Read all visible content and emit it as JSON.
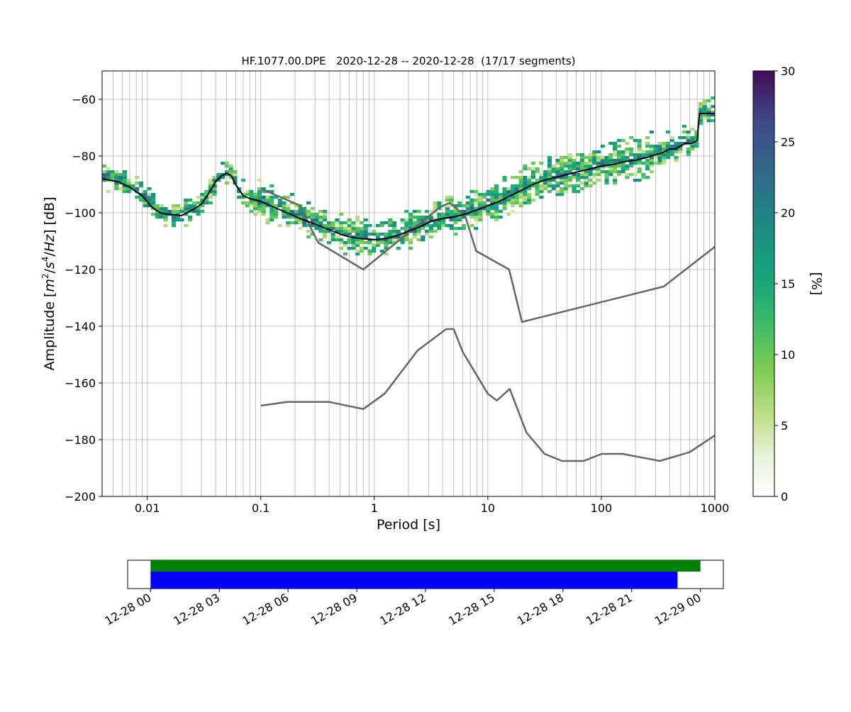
{
  "chart_data": [
    {
      "type": "heatmap",
      "title": "HF.1077.00.DPE   2020-12-28 -- 2020-12-28  (17/17 segments)",
      "xlabel": "Period [s]",
      "ylabel": "Amplitude [m²/s⁴/Hz] [dB]",
      "xscale": "log",
      "xlim": [
        0.004,
        1000
      ],
      "ylim": [
        -200,
        -50
      ],
      "grid": true,
      "x_ticks": [
        {
          "value": 0.01,
          "label": "0.01"
        },
        {
          "value": 0.1,
          "label": "0.1"
        },
        {
          "value": 1,
          "label": "1"
        },
        {
          "value": 10,
          "label": "10"
        },
        {
          "value": 100,
          "label": "100"
        },
        {
          "value": 1000,
          "label": "1000"
        }
      ],
      "y_ticks": [
        {
          "value": -60,
          "label": "−60"
        },
        {
          "value": -80,
          "label": "−80"
        },
        {
          "value": -100,
          "label": "−100"
        },
        {
          "value": -120,
          "label": "−120"
        },
        {
          "value": -140,
          "label": "−140"
        },
        {
          "value": -160,
          "label": "−160"
        },
        {
          "value": -180,
          "label": "−180"
        },
        {
          "value": -200,
          "label": "−200"
        }
      ],
      "colorbar": {
        "label": "[%]",
        "range": [
          0,
          30
        ],
        "colormap": "viridis_r-like",
        "ticks": [
          {
            "value": 0,
            "label": "0"
          },
          {
            "value": 5,
            "label": "5"
          },
          {
            "value": 10,
            "label": "10"
          },
          {
            "value": 15,
            "label": "15"
          },
          {
            "value": 20,
            "label": "20"
          },
          {
            "value": 25,
            "label": "25"
          },
          {
            "value": 30,
            "label": "30"
          }
        ]
      },
      "mean_curve": {
        "color": "#000000",
        "period": [
          0.004,
          0.0055,
          0.007,
          0.009,
          0.011,
          0.013,
          0.015,
          0.02,
          0.025,
          0.03,
          0.035,
          0.04,
          0.045,
          0.05,
          0.055,
          0.06,
          0.07,
          0.08,
          0.1,
          0.13,
          0.17,
          0.22,
          0.3,
          0.4,
          0.5,
          0.6,
          0.8,
          1.0,
          1.3,
          1.6,
          2.0,
          2.5,
          3.2,
          4,
          5,
          6.3,
          8,
          10,
          12.6,
          15.8,
          20,
          25,
          31.6,
          40,
          50,
          63,
          80,
          100,
          126,
          158,
          200,
          251,
          300,
          340,
          400,
          450,
          550,
          630,
          700,
          730,
          800,
          1000
        ],
        "amplitude": [
          -88,
          -89,
          -91,
          -94,
          -98,
          -100,
          -100.5,
          -101,
          -99,
          -97,
          -93,
          -89,
          -87,
          -86,
          -87,
          -90,
          -94,
          -95,
          -96,
          -98,
          -100,
          -102,
          -104,
          -106,
          -107.5,
          -108.5,
          -109.2,
          -109.5,
          -109,
          -108,
          -106.5,
          -105,
          -103,
          -102,
          -101.5,
          -100.5,
          -99,
          -97.5,
          -96,
          -94,
          -92,
          -90,
          -88.5,
          -87.5,
          -86.5,
          -85.5,
          -84.5,
          -83.5,
          -83,
          -82,
          -81.5,
          -80.5,
          -79.5,
          -79,
          -77.5,
          -77.5,
          -75.5,
          -75.5,
          -74.5,
          -65,
          -65,
          -65
        ]
      },
      "reference_curves": [
        {
          "color": "#666666",
          "period": [
            0.1,
            0.22,
            0.32,
            0.8,
            3.8,
            4.6,
            6.3,
            7.9,
            15.4,
            20,
            354.8,
            1000
          ],
          "amplitude": [
            -91.5,
            -97.4,
            -110.5,
            -120,
            -98,
            -96.5,
            -101,
            -113.5,
            -120,
            -138.5,
            -126,
            -112
          ]
        },
        {
          "color": "#666666",
          "period": [
            0.1,
            0.17,
            0.4,
            0.8,
            1.24,
            2.4,
            4.3,
            5,
            6,
            10,
            12,
            15.6,
            21.9,
            31.6,
            45,
            70,
            101,
            154,
            328,
            600,
            1000
          ],
          "amplitude": [
            -168,
            -166.7,
            -166.7,
            -169.2,
            -163.7,
            -148.6,
            -141,
            -141,
            -149,
            -163.8,
            -166.2,
            -162.1,
            -177.5,
            -185,
            -187.5,
            -187.5,
            -185,
            -185,
            -187.5,
            -184.4,
            -178.5
          ]
        }
      ]
    },
    {
      "type": "bar",
      "title": "",
      "orientation": "horizontal",
      "xlim": [
        "2020-12-27 23:00",
        "2020-12-29 01:00"
      ],
      "x_ticks": [
        "12-28 00",
        "12-28 03",
        "12-28 06",
        "12-28 09",
        "12-28 12",
        "12-28 15",
        "12-28 18",
        "12-28 21",
        "12-29 00"
      ],
      "series": [
        {
          "color": "#008000",
          "start": "2020-12-28 00:00",
          "end": "2020-12-29 00:00"
        },
        {
          "color": "#0000ff",
          "start": "2020-12-28 00:00",
          "end": "2020-12-28 23:00"
        }
      ]
    }
  ]
}
